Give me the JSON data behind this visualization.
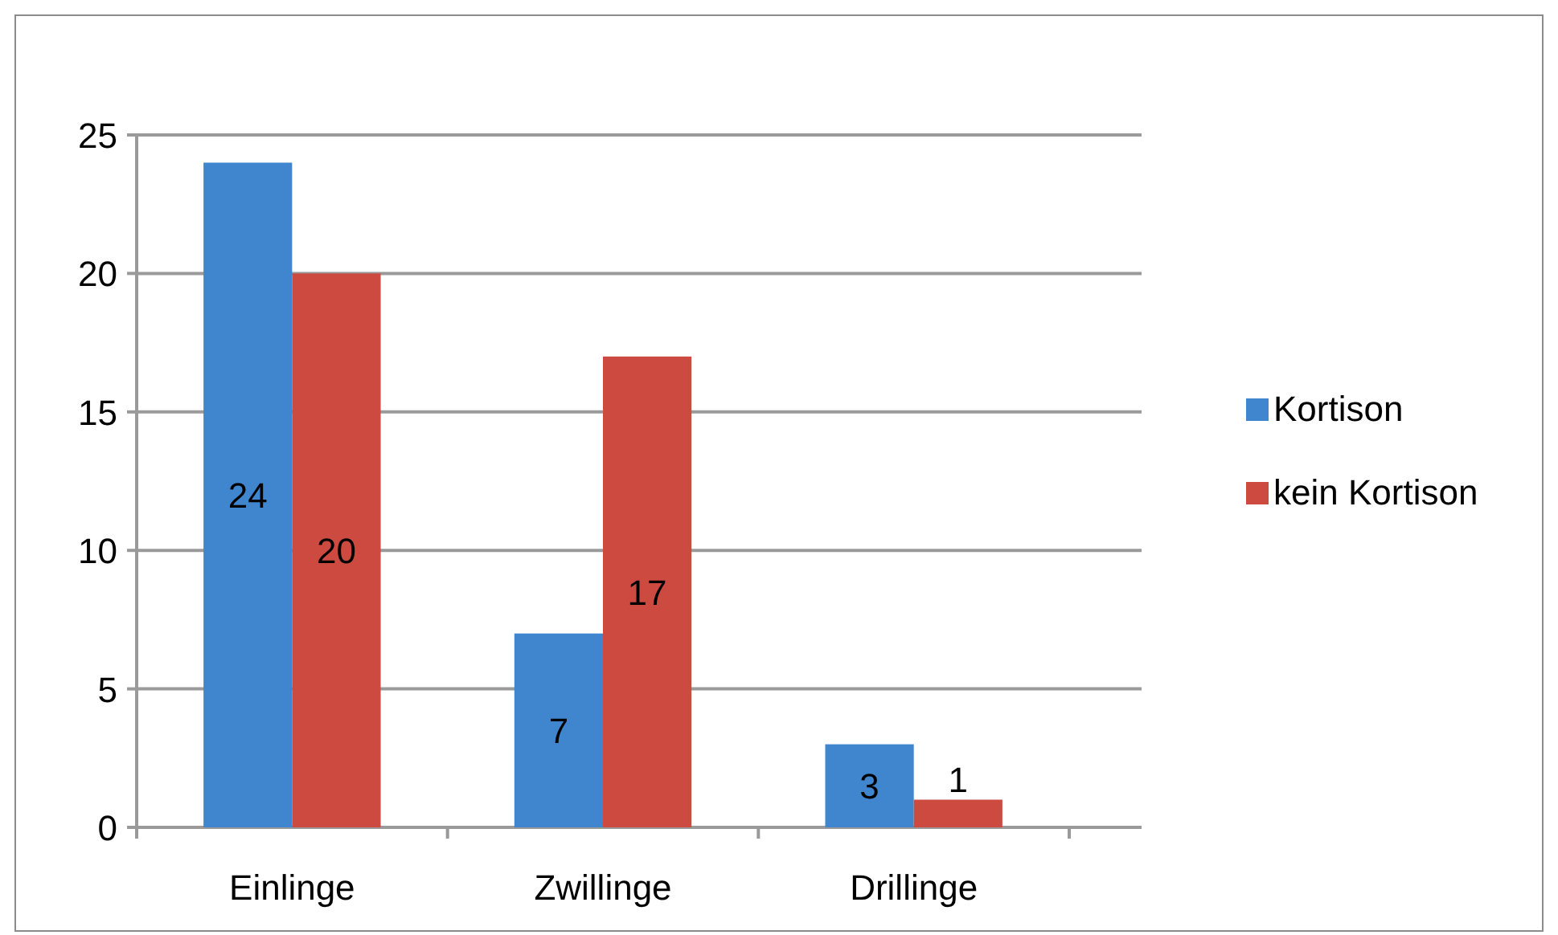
{
  "chart_data": {
    "type": "bar",
    "categories": [
      "Einlinge",
      "Zwillinge",
      "Drillinge"
    ],
    "series": [
      {
        "name": "Kortison",
        "color": "#3f86cf",
        "values": [
          24,
          7,
          3
        ]
      },
      {
        "name": "kein Kortison",
        "color": "#cc4a40",
        "values": [
          20,
          17,
          1
        ]
      }
    ],
    "ylim": [
      0,
      25
    ],
    "yticks": [
      0,
      5,
      10,
      15,
      20,
      25
    ],
    "grid": "y",
    "legend": "right",
    "data_labels": true
  }
}
